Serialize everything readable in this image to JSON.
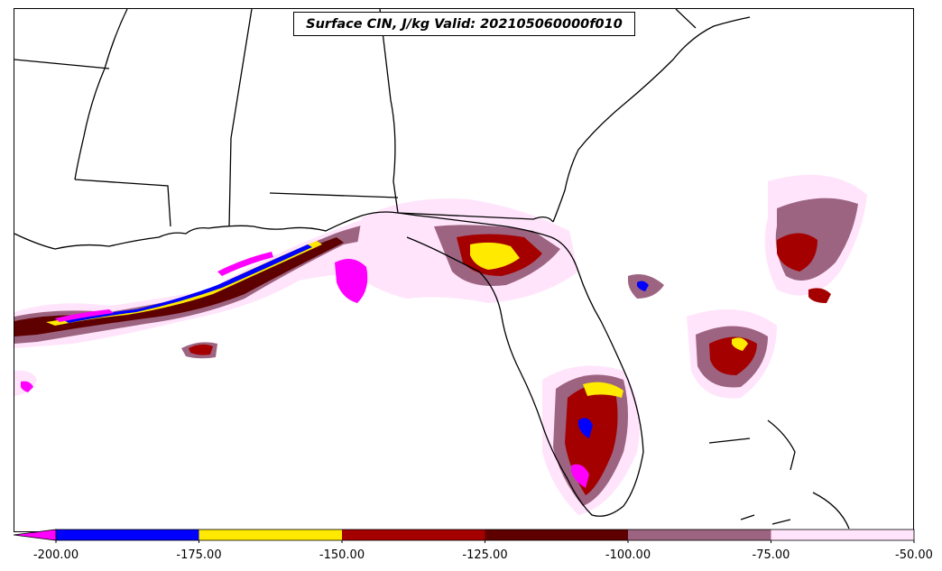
{
  "title": "Surface CIN, J/kg Valid: 202105060000f010",
  "colorbar": {
    "extend": "min",
    "under_color": "#ff00ff",
    "levels": [
      {
        "from": -200,
        "to": -175,
        "color": "#0000ff"
      },
      {
        "from": -175,
        "to": -150,
        "color": "#ffea00"
      },
      {
        "from": -150,
        "to": -125,
        "color": "#a50000"
      },
      {
        "from": -125,
        "to": -100,
        "color": "#5e0000"
      },
      {
        "from": -100,
        "to": -75,
        "color": "#9c6480"
      },
      {
        "from": -75,
        "to": -50,
        "color": "#ffe4fb"
      }
    ],
    "tick_labels": [
      "-200.00",
      "-175.00",
      "-150.00",
      "-125.00",
      "-100.00",
      "-75.00",
      "-50.00"
    ]
  },
  "map": {
    "region": "Southeastern United States and Gulf of Mexico",
    "land_color": "#ffffff",
    "boundary_color": "#000000"
  }
}
